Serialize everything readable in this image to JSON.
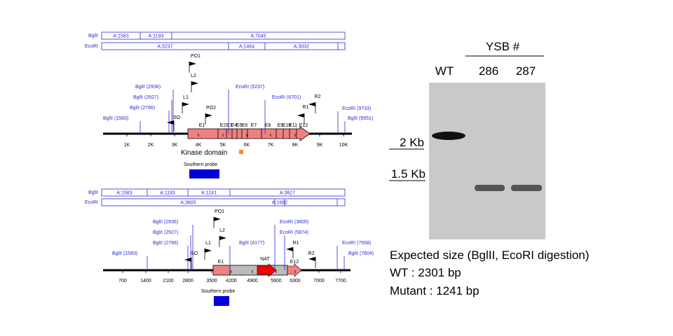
{
  "top_map": {
    "bglii_label": "BglII",
    "ecori_label": "EcoRI",
    "bglii_fragments": [
      "A:1583",
      "A:1193",
      "A:7045"
    ],
    "ecori_fragments": [
      "A:5237",
      "A:1464",
      "A:3032"
    ],
    "sites": [
      "BglII (1583)",
      "BglII (2766)",
      "BglII (2927)",
      "BglII (2936)",
      "EcoRI (5237)",
      "EcoRI (6701)",
      "EcoRI (9733)",
      "BglII (9951)"
    ],
    "primers": [
      "PO1",
      "L2",
      "L1",
      "SO",
      "PO2",
      "R2",
      "R1"
    ],
    "exons": [
      "E1",
      "E2",
      "E3",
      "E4",
      "E5",
      "E6",
      "E7",
      "E8",
      "E9",
      "E10",
      "E11",
      "E12"
    ],
    "axis": [
      "1K",
      "2K",
      "3K",
      "4K",
      "5K",
      "6K",
      "7K",
      "8K",
      "9K",
      "10K"
    ],
    "kinase_domain": "Kinase domain",
    "southern_probe": "Southern probe"
  },
  "bottom_map": {
    "bglii_label": "BglII",
    "ecori_label": "EcoRI",
    "bglii_fragments": [
      "A:1583",
      "A:1193",
      "A:1241",
      "A:3627"
    ],
    "ecori_fragments": [
      "A:3605",
      "A:1682"
    ],
    "sites": [
      "BglII (1583)",
      "BglII (2766)",
      "BglII (2927)",
      "BglII (2936)",
      "BglII (4177)",
      "EcoRI (3605)",
      "EcoRI (5874)",
      "EcoRI (7558)",
      "BglII (7804)"
    ],
    "primers": [
      "PO1",
      "L2",
      "L1",
      "SO",
      "R1",
      "R2"
    ],
    "exons": [
      "E1",
      "E12"
    ],
    "cassette": "NAT",
    "axis": [
      "700",
      "1400",
      "2100",
      "2800",
      "3500",
      "4200",
      "4900",
      "5600",
      "6300",
      "7000",
      "7700"
    ],
    "southern_probe": "Southern probe"
  },
  "blot": {
    "group_label": "YSB #",
    "lanes": [
      "WT",
      "286",
      "287"
    ],
    "size_markers": [
      "2 Kb",
      "1.5 Kb"
    ]
  },
  "caption": {
    "title": "Expected size (BglII, EcoRI digestion)",
    "wt": "WT : 2301 bp",
    "mutant": "Mutant : 1241 bp"
  }
}
